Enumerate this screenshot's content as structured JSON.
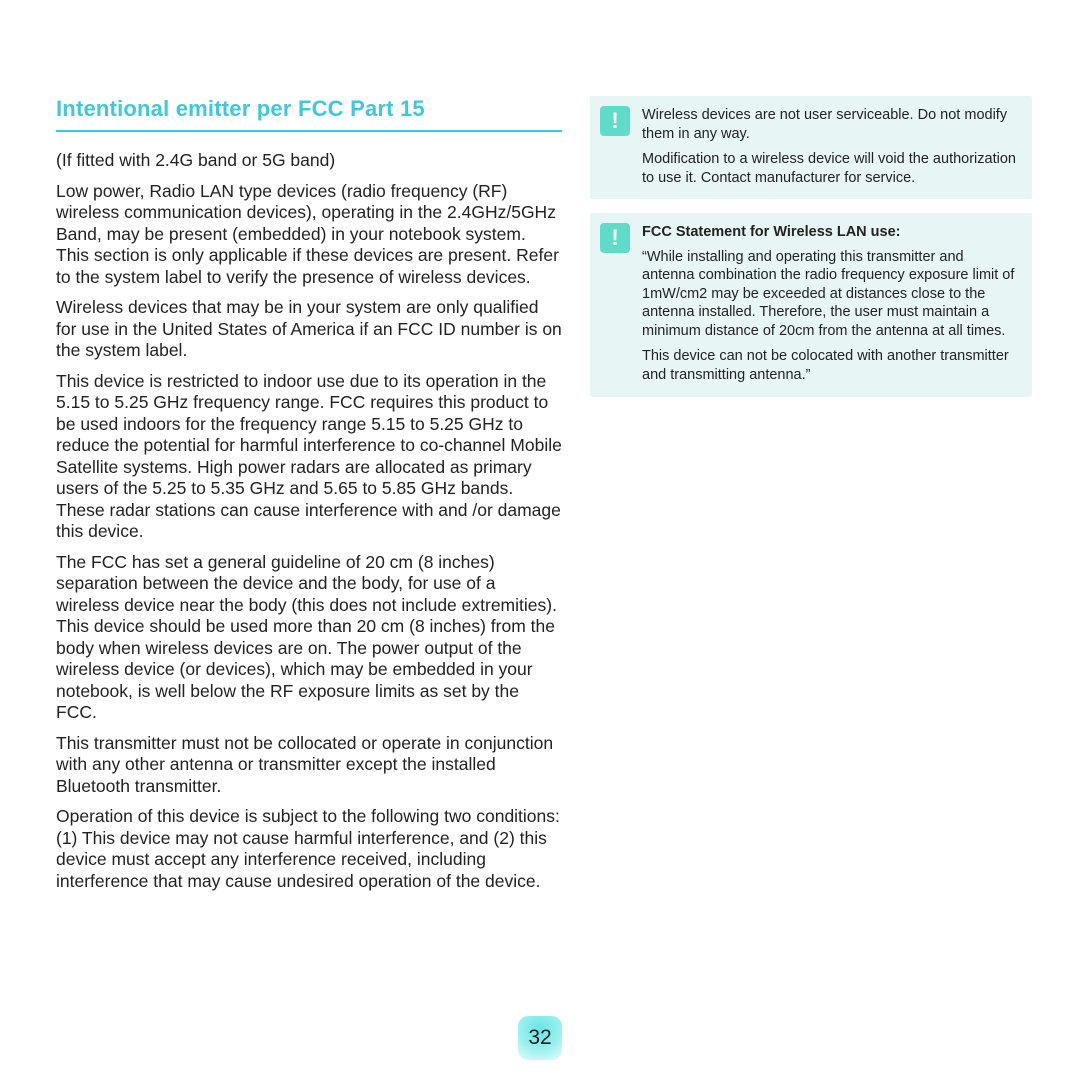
{
  "title": "Intentional emitter per FCC Part 15",
  "title_color": "#43c6d8",
  "title_fontsize": 22,
  "body_fontsize": 17.5,
  "body_color": "#222222",
  "background_color": "#ffffff",
  "page_number": "32",
  "left_column": {
    "paragraphs": [
      "(If fitted with 2.4G band or 5G band)",
      "Low power, Radio LAN type devices (radio frequency (RF) wireless communication devices), operating in the 2.4GHz/5GHz Band, may be present (embedded) in your notebook system. This section is only applicable if these devices are present. Refer to the system label to verify the presence of wireless devices.",
      "Wireless devices that may be in your system are only qualified for use in the United States of America if an FCC ID number is on the system label.",
      "This device is restricted to indoor use due to its operation in the 5.15 to 5.25 GHz frequency range. FCC requires this product to be used indoors for the frequency range 5.15 to 5.25 GHz to reduce the potential for harmful interference to co-channel Mobile Satellite systems. High power radars are allocated as primary users of the 5.25 to 5.35 GHz and 5.65 to 5.85 GHz bands. These radar stations can cause interference with and /or damage this device.",
      "The FCC has set a general guideline of 20 cm (8 inches) separation between the device and the body, for use of a wireless device near the body (this does not include extremities). This device should be used more than 20 cm (8 inches) from the body when wireless devices are on. The power output of the wireless device (or devices), which may be embedded in your notebook, is well below the RF exposure limits as set by the FCC.",
      "This transmitter must not be collocated or operate in conjunction with any other antenna or transmitter except the installed Bluetooth transmitter.",
      "Operation of this device is subject to the following two conditions: (1) This device may not cause harmful interference, and (2) this device must accept any interference received, including interference that may cause undesired operation of the device."
    ]
  },
  "callouts": [
    {
      "icon": "!",
      "icon_bg": "#5fdbc8",
      "icon_color": "#ffffff",
      "bg": "#e7f6f5",
      "title": "",
      "paragraphs": [
        "Wireless devices are not user serviceable. Do not modify them in any way.",
        "Modification to a wireless device will void the authorization to use it. Contact manufacturer for service."
      ]
    },
    {
      "icon": "!",
      "icon_bg": "#5fdbc8",
      "icon_color": "#ffffff",
      "bg": "#e7f6f5",
      "title": "FCC Statement for Wireless LAN use:",
      "paragraphs": [
        "“While installing and operating this transmitter and antenna combination the radio frequency exposure limit of 1mW/cm2 may be exceeded at distances close to the antenna installed. Therefore, the user must maintain a minimum distance of 20cm from the antenna at all times.",
        "This device can not be colocated with another transmitter and transmitting antenna.”"
      ]
    }
  ],
  "callout_fontsize": 14.5,
  "page_number_badge": {
    "bg_gradient_center": "#6be4e6",
    "bg_gradient_mid": "#9df0f0",
    "bg_gradient_edge": "#e8fbfb",
    "fontsize": 21,
    "color": "#222222"
  }
}
